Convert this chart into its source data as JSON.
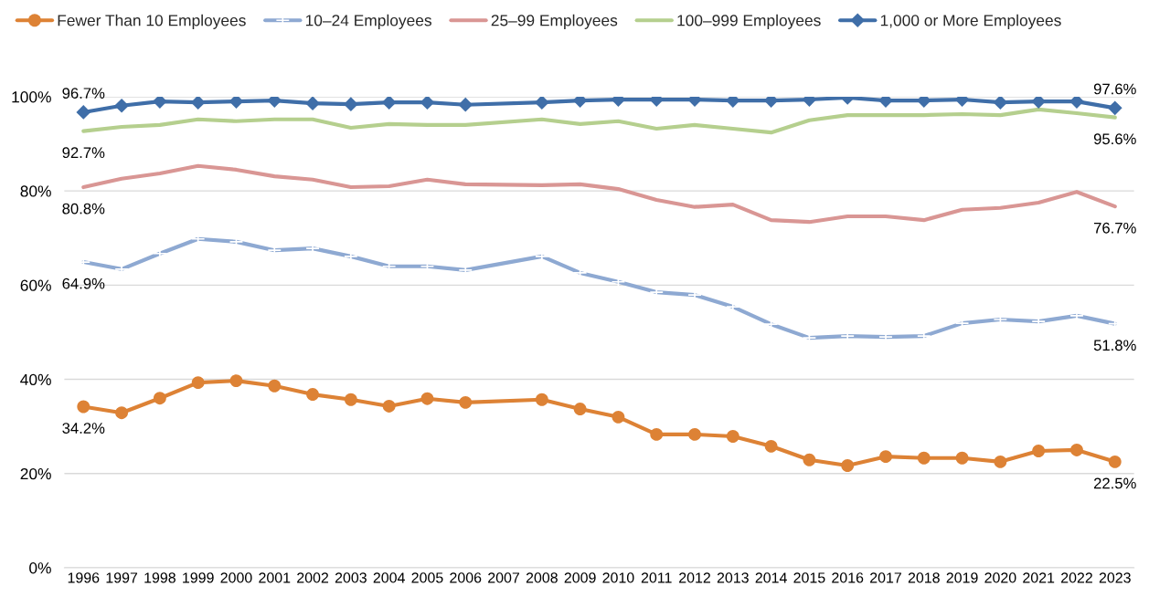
{
  "chart_data": {
    "type": "line",
    "categories": [
      "1996",
      "1997",
      "1998",
      "1999",
      "2000",
      "2001",
      "2002",
      "2003",
      "2004",
      "2005",
      "2006",
      "2007",
      "2008",
      "2009",
      "2010",
      "2011",
      "2012",
      "2013",
      "2014",
      "2015",
      "2016",
      "2017",
      "2018",
      "2019",
      "2020",
      "2021",
      "2022",
      "2023"
    ],
    "series": [
      {
        "name": "Fewer Than 10 Employees",
        "color": "#dd8235",
        "marker": "circle",
        "values": [
          34.2,
          32.9,
          36.0,
          39.3,
          39.7,
          38.6,
          36.8,
          35.7,
          34.3,
          35.9,
          35.1,
          null,
          35.7,
          33.7,
          32.0,
          28.3,
          28.3,
          27.9,
          25.8,
          22.9,
          21.7,
          23.6,
          23.3,
          23.3,
          22.5,
          24.8,
          25.0,
          22.5
        ],
        "value_labels": [
          "34.2%",
          null,
          null,
          null,
          null,
          null,
          null,
          null,
          null,
          null,
          null,
          null,
          null,
          null,
          null,
          null,
          null,
          null,
          null,
          null,
          null,
          null,
          null,
          null,
          null,
          null,
          null,
          "22.5%"
        ]
      },
      {
        "name": "10–24 Employees",
        "color": "#8ea9d2",
        "marker": "cross",
        "values": [
          64.9,
          63.4,
          66.7,
          69.8,
          69.2,
          67.4,
          67.8,
          66.1,
          64.0,
          64.0,
          63.2,
          null,
          66.1,
          62.6,
          60.7,
          58.5,
          57.9,
          55.4,
          51.7,
          48.8,
          49.2,
          49.0,
          49.2,
          51.9,
          52.7,
          52.3,
          53.5,
          51.8
        ],
        "value_labels": [
          "64.9%",
          null,
          null,
          null,
          null,
          null,
          null,
          null,
          null,
          null,
          null,
          null,
          null,
          null,
          null,
          null,
          null,
          null,
          null,
          null,
          null,
          null,
          null,
          null,
          null,
          null,
          null,
          "51.8%"
        ]
      },
      {
        "name": "25–99 Employees",
        "color": "#d99694",
        "marker": "none",
        "values": [
          80.8,
          82.6,
          83.7,
          85.3,
          84.5,
          83.1,
          82.4,
          80.8,
          81.0,
          82.4,
          81.4,
          null,
          81.2,
          81.4,
          80.4,
          78.1,
          76.6,
          77.1,
          73.8,
          73.4,
          74.6,
          74.6,
          73.8,
          76.0,
          76.4,
          77.5,
          79.8,
          76.7
        ],
        "value_labels": [
          "80.8%",
          null,
          null,
          null,
          null,
          null,
          null,
          null,
          null,
          null,
          null,
          null,
          null,
          null,
          null,
          null,
          null,
          null,
          null,
          null,
          null,
          null,
          null,
          null,
          null,
          null,
          null,
          "76.7%"
        ]
      },
      {
        "name": "100–999 Employees",
        "color": "#b5cf8e",
        "marker": "none",
        "values": [
          92.7,
          93.6,
          94.0,
          95.2,
          94.8,
          95.2,
          95.2,
          93.4,
          94.2,
          94.0,
          94.0,
          null,
          95.2,
          94.2,
          94.8,
          93.2,
          94.0,
          93.2,
          92.4,
          95.0,
          96.1,
          96.1,
          96.1,
          96.3,
          96.1,
          97.3,
          96.5,
          95.6
        ],
        "value_labels": [
          "92.7%",
          null,
          null,
          null,
          null,
          null,
          null,
          null,
          null,
          null,
          null,
          null,
          null,
          null,
          null,
          null,
          null,
          null,
          null,
          null,
          null,
          null,
          null,
          null,
          null,
          null,
          null,
          "95.6%"
        ]
      },
      {
        "name": "1,000 or More Employees",
        "color": "#3f6ea8",
        "marker": "diamond",
        "values": [
          96.7,
          98.1,
          99.0,
          98.8,
          99.0,
          99.2,
          98.6,
          98.4,
          98.8,
          98.8,
          98.3,
          null,
          98.8,
          99.2,
          99.4,
          99.4,
          99.4,
          99.2,
          99.2,
          99.4,
          99.8,
          99.2,
          99.2,
          99.4,
          98.8,
          99.0,
          99.0,
          97.6
        ],
        "value_labels": [
          "96.7%",
          null,
          null,
          null,
          null,
          null,
          null,
          null,
          null,
          null,
          null,
          null,
          null,
          null,
          null,
          null,
          null,
          null,
          null,
          null,
          null,
          null,
          null,
          null,
          null,
          null,
          null,
          "97.6%"
        ]
      }
    ],
    "ylim": [
      0,
      100
    ],
    "yticks": [
      {
        "value": 0,
        "label": "0%"
      },
      {
        "value": 20,
        "label": "20%"
      },
      {
        "value": 40,
        "label": "40%"
      },
      {
        "value": 60,
        "label": "60%"
      },
      {
        "value": 80,
        "label": "80%"
      },
      {
        "value": 100,
        "label": "100%"
      }
    ],
    "grid": "y",
    "legend": "top"
  }
}
